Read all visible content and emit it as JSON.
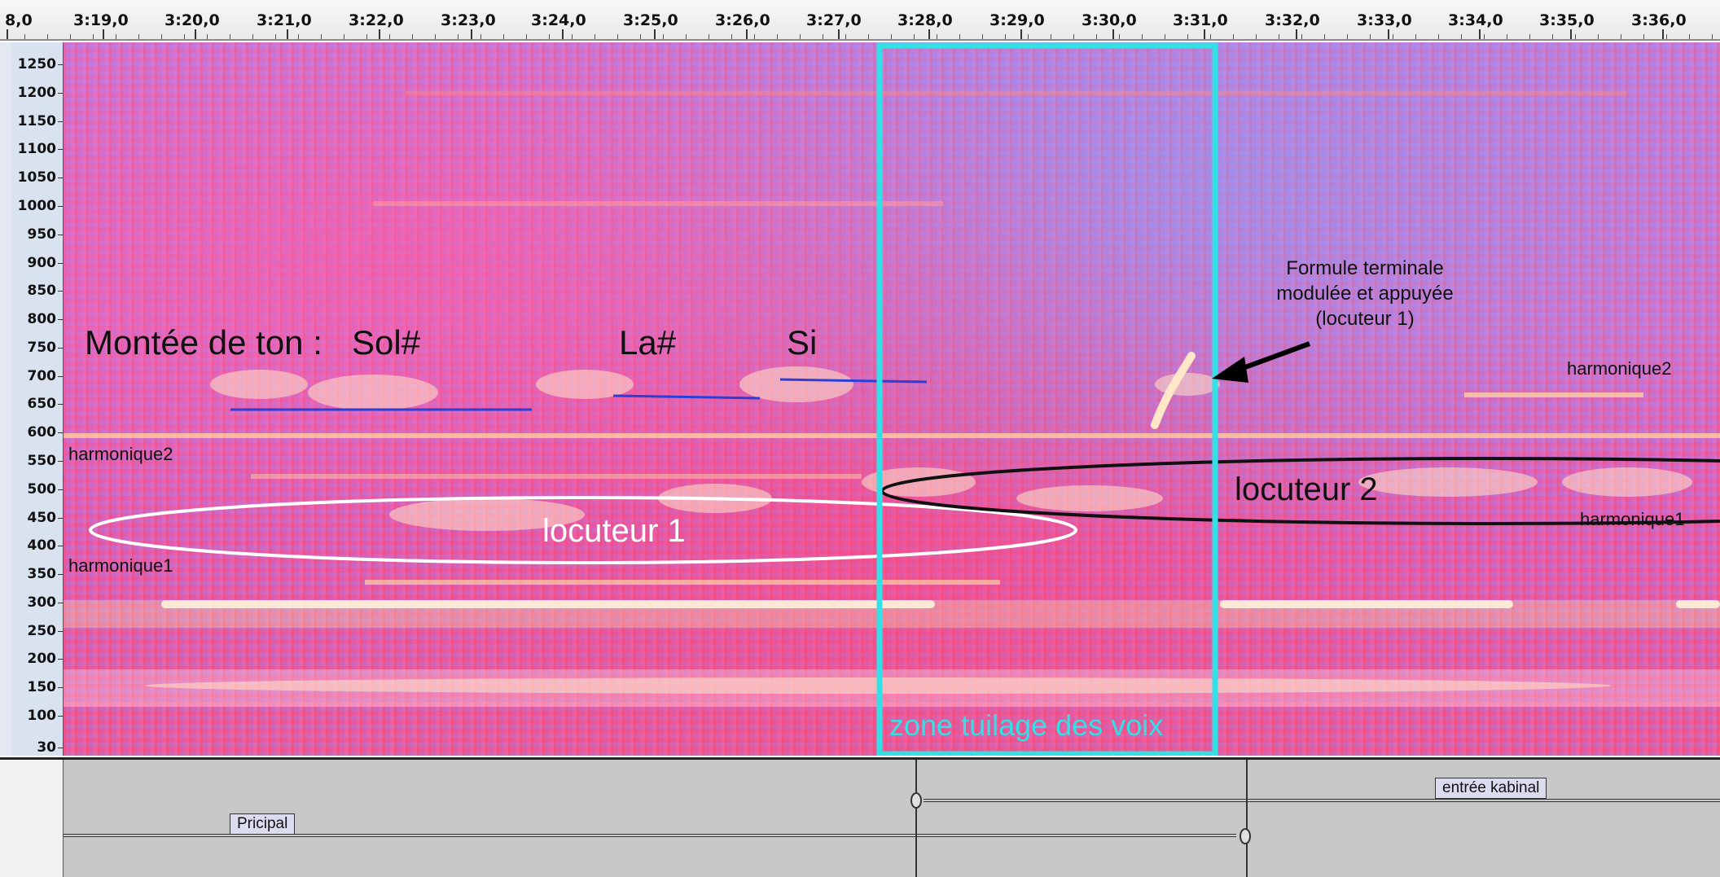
{
  "timeline": {
    "ticks": [
      "8,0",
      "3:19,0",
      "3:20,0",
      "3:21,0",
      "3:22,0",
      "3:23,0",
      "3:24,0",
      "3:25,0",
      "3:26,0",
      "3:27,0",
      "3:28,0",
      "3:29,0",
      "3:30,0",
      "3:31,0",
      "3:32,0",
      "3:33,0",
      "3:34,0",
      "3:35,0",
      "3:36,0"
    ]
  },
  "frequency_axis": {
    "labels": [
      "1250",
      "1200",
      "1150",
      "1100",
      "1050",
      "1000",
      "950",
      "900",
      "850",
      "800",
      "750",
      "700",
      "650",
      "600",
      "550",
      "500",
      "450",
      "400",
      "350",
      "300",
      "250",
      "200",
      "150",
      "100",
      "30"
    ]
  },
  "annotations": {
    "rising_tone": "Montée de ton :",
    "note_sol": "Sol#",
    "note_la": "La#",
    "note_si": "Si",
    "harmonic2_left": "harmonique2",
    "harmonic1_left": "harmonique1",
    "harmonic2_right": "harmonique2",
    "harmonic1_right": "harmonique1",
    "speaker1": "locuteur 1",
    "speaker2": "locuteur 2",
    "overlap_zone": "zone tuilage des voix",
    "terminal_formula": "Formule terminale modulée et appuyée (locuteur 1)"
  },
  "label_track": {
    "label_principal": "Pricipal",
    "label_entree": "entrée kabinal"
  },
  "colors": {
    "overlap_box": "#33e0e6",
    "note_lines": "#2a3fd6",
    "speaker1_ellipse": "#ffffff",
    "speaker2_ellipse": "#111111"
  }
}
